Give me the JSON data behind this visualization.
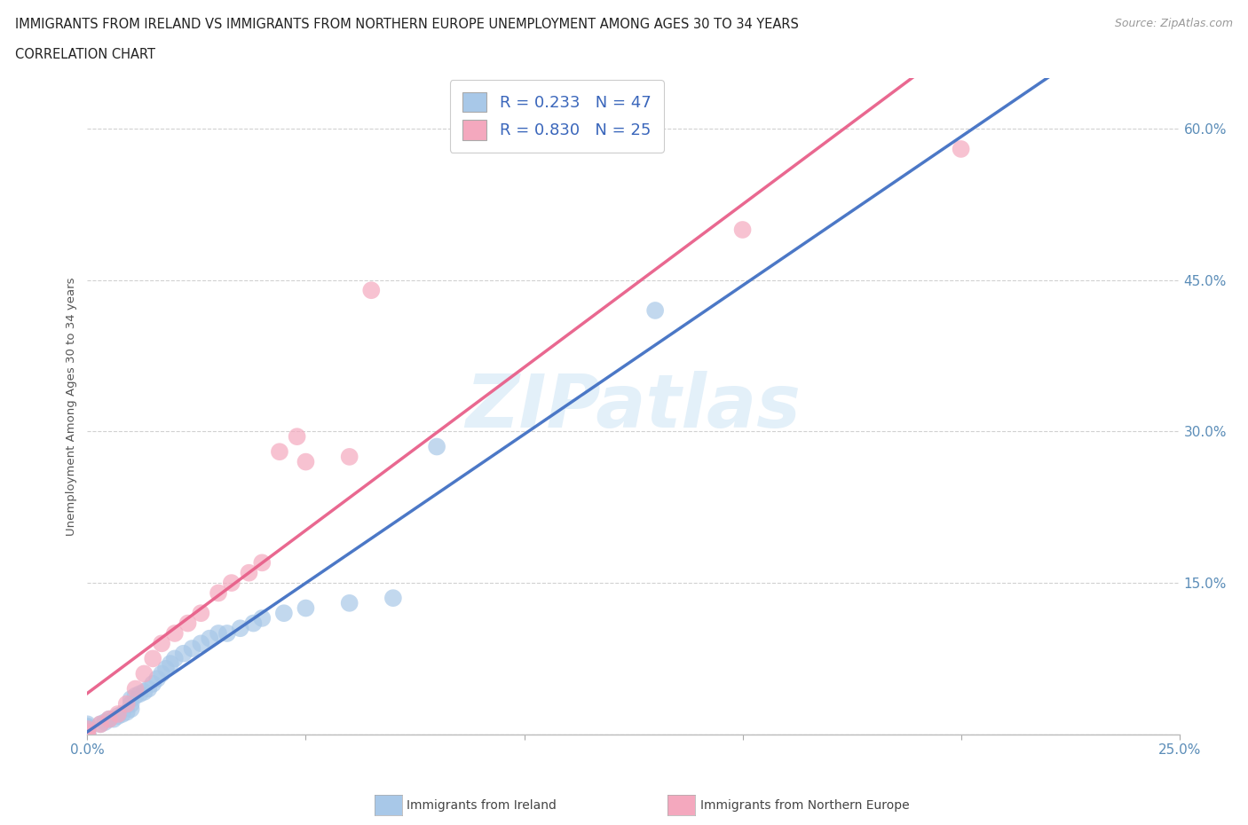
{
  "title_line1": "IMMIGRANTS FROM IRELAND VS IMMIGRANTS FROM NORTHERN EUROPE UNEMPLOYMENT AMONG AGES 30 TO 34 YEARS",
  "title_line2": "CORRELATION CHART",
  "source_text": "Source: ZipAtlas.com",
  "ylabel": "Unemployment Among Ages 30 to 34 years",
  "watermark": "ZIPatlas",
  "ireland_R": 0.233,
  "ireland_N": 47,
  "northern_R": 0.83,
  "northern_N": 25,
  "ireland_color": "#a8c8e8",
  "northern_color": "#f4a8be",
  "ireland_line_color": "#4472c4",
  "northern_line_color": "#e8608a",
  "legend_label_ireland": "Immigrants from Ireland",
  "legend_label_northern": "Immigrants from Northern Europe",
  "xlim": [
    0.0,
    0.25
  ],
  "ylim": [
    0.0,
    0.65
  ],
  "x_ticks": [
    0.0,
    0.05,
    0.1,
    0.15,
    0.2,
    0.25
  ],
  "x_tick_labels": [
    "0.0%",
    "",
    "",
    "",
    "",
    "25.0%"
  ],
  "y_ticks": [
    0.0,
    0.15,
    0.3,
    0.45,
    0.6
  ],
  "y_tick_labels": [
    "",
    "15.0%",
    "30.0%",
    "45.0%",
    "60.0%"
  ],
  "ireland_x": [
    0.0,
    0.0,
    0.0,
    0.0,
    0.0,
    0.0,
    0.0,
    0.0,
    0.0,
    0.0,
    0.0,
    0.0,
    0.003,
    0.004,
    0.005,
    0.006,
    0.007,
    0.008,
    0.009,
    0.01,
    0.01,
    0.01,
    0.011,
    0.012,
    0.013,
    0.014,
    0.015,
    0.016,
    0.017,
    0.018,
    0.019,
    0.02,
    0.022,
    0.024,
    0.026,
    0.028,
    0.03,
    0.032,
    0.035,
    0.038,
    0.04,
    0.045,
    0.05,
    0.06,
    0.07,
    0.08,
    0.13
  ],
  "ireland_y": [
    0.0,
    0.0,
    0.0,
    0.0,
    0.0,
    0.002,
    0.003,
    0.005,
    0.005,
    0.007,
    0.008,
    0.01,
    0.01,
    0.012,
    0.015,
    0.015,
    0.018,
    0.02,
    0.022,
    0.025,
    0.03,
    0.035,
    0.038,
    0.04,
    0.042,
    0.045,
    0.05,
    0.055,
    0.06,
    0.065,
    0.07,
    0.075,
    0.08,
    0.085,
    0.09,
    0.095,
    0.1,
    0.1,
    0.105,
    0.11,
    0.115,
    0.12,
    0.125,
    0.13,
    0.135,
    0.285,
    0.42
  ],
  "northern_x": [
    0.0,
    0.0,
    0.0,
    0.003,
    0.005,
    0.007,
    0.009,
    0.011,
    0.013,
    0.015,
    0.017,
    0.02,
    0.023,
    0.026,
    0.03,
    0.033,
    0.037,
    0.04,
    0.044,
    0.048,
    0.05,
    0.06,
    0.065,
    0.15,
    0.2
  ],
  "northern_y": [
    0.0,
    0.002,
    0.005,
    0.01,
    0.015,
    0.02,
    0.03,
    0.045,
    0.06,
    0.075,
    0.09,
    0.1,
    0.11,
    0.12,
    0.14,
    0.15,
    0.16,
    0.17,
    0.28,
    0.295,
    0.27,
    0.275,
    0.44,
    0.5,
    0.58
  ]
}
